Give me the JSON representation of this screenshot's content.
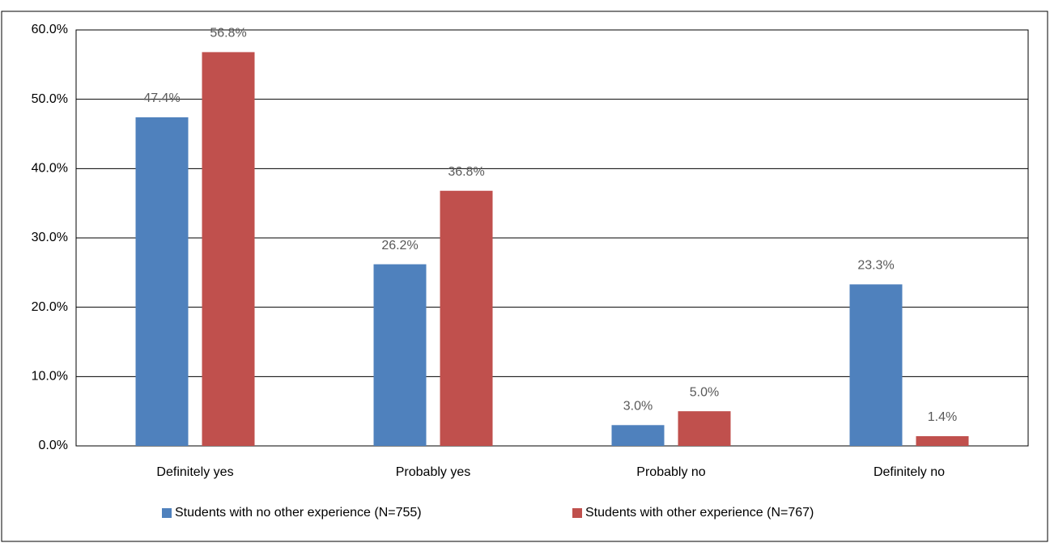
{
  "chart_data": {
    "type": "bar",
    "categories": [
      "Definitely yes",
      "Probably yes",
      "Probably no",
      "Definitely no"
    ],
    "series": [
      {
        "name": "Students with no other experience (N=755)",
        "color": "#4f81bd",
        "values": [
          47.4,
          26.2,
          3.0,
          23.3
        ],
        "value_labels": [
          "47.4%",
          "26.2%",
          "3.0%",
          "23.3%"
        ]
      },
      {
        "name": "Students with other experience (N=767)",
        "color": "#c0504d",
        "values": [
          56.8,
          36.8,
          5.0,
          1.4
        ],
        "value_labels": [
          "56.8%",
          "36.8%",
          "5.0%",
          "1.4%"
        ]
      }
    ],
    "ylim": [
      0,
      60
    ],
    "yticks": [
      {
        "value": 0,
        "label": "0.0%"
      },
      {
        "value": 10,
        "label": "10.0%"
      },
      {
        "value": 20,
        "label": "20.0%"
      },
      {
        "value": 30,
        "label": "30.0%"
      },
      {
        "value": 40,
        "label": "40.0%"
      },
      {
        "value": 50,
        "label": "50.0%"
      },
      {
        "value": 60,
        "label": "60.0%"
      }
    ],
    "grid": true,
    "legend": "bottom"
  }
}
